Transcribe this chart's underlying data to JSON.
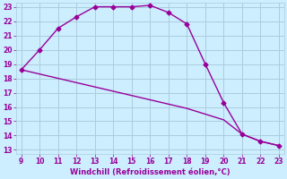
{
  "x_curve": [
    9,
    10,
    11,
    12,
    13,
    14,
    15,
    16,
    17,
    18,
    19,
    20,
    21,
    22,
    23
  ],
  "y_curve": [
    18.6,
    20.0,
    21.5,
    22.3,
    23.0,
    23.0,
    23.0,
    23.1,
    22.6,
    21.8,
    19.0,
    16.3,
    14.1,
    13.6,
    13.3
  ],
  "x_line": [
    9,
    10,
    11,
    12,
    13,
    14,
    15,
    16,
    17,
    18,
    19,
    20,
    21,
    22,
    23
  ],
  "y_line": [
    18.6,
    18.3,
    18.0,
    17.7,
    17.4,
    17.1,
    16.8,
    16.5,
    16.2,
    15.9,
    15.5,
    15.1,
    14.1,
    13.6,
    13.3
  ],
  "color": "#990099",
  "bg_color": "#cceeff",
  "grid_color": "#aaccdd",
  "xlabel": "Windchill (Refroidissement éolien,°C)",
  "xlabel_color": "#990099",
  "tick_color": "#990099",
  "xlim": [
    9,
    23
  ],
  "ylim": [
    13,
    23
  ],
  "xticks": [
    9,
    10,
    11,
    12,
    13,
    14,
    15,
    16,
    17,
    18,
    19,
    20,
    21,
    22,
    23
  ],
  "yticks": [
    13,
    14,
    15,
    16,
    17,
    18,
    19,
    20,
    21,
    22,
    23
  ],
  "figsize": [
    3.2,
    2.0
  ],
  "dpi": 100,
  "marker": "D",
  "markersize": 2.5,
  "linewidth": 1.0
}
